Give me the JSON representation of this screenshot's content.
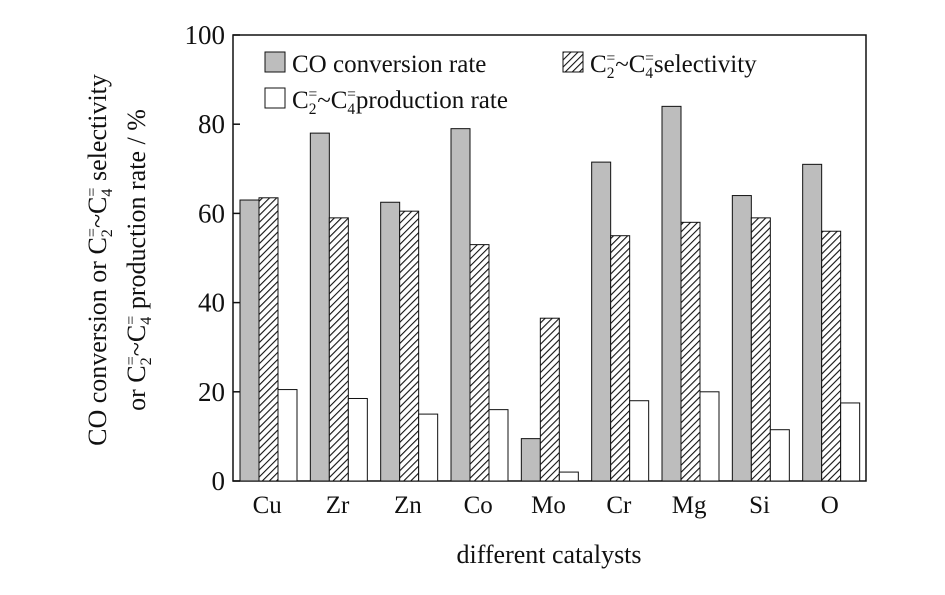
{
  "chart_data": {
    "type": "bar",
    "xlabel": "different catalysts",
    "ylabel_line1_parts": [
      "CO conversion or C",
      "2",
      "=",
      "~C",
      "4",
      "=",
      " selectivity"
    ],
    "ylabel_line2_parts": [
      "or C",
      "2",
      "=",
      "~C",
      "4",
      "=",
      " production rate / %"
    ],
    "ylim": [
      0,
      100
    ],
    "yticks": [
      "0",
      "20",
      "40",
      "60",
      "80",
      "100"
    ],
    "categories": [
      "Cu",
      "Zr",
      "Zn",
      "Co",
      "Mo",
      "Cr",
      "Mg",
      "Si",
      "O"
    ],
    "series": [
      {
        "name": "CO conversion rate",
        "fill": "gray",
        "values": [
          63,
          78,
          62.5,
          79,
          9.5,
          71.5,
          84,
          64,
          71
        ]
      },
      {
        "name_parts": [
          "C",
          "2",
          "=",
          "~C",
          "4",
          "=",
          "selectivity"
        ],
        "fill": "hatched",
        "values": [
          63.5,
          59,
          60.5,
          53,
          36.5,
          55,
          58,
          59,
          56
        ]
      },
      {
        "name_parts": [
          "C",
          "2",
          "=",
          "~C",
          "4",
          "=",
          "production rate"
        ],
        "fill": "white",
        "values": [
          20.5,
          18.5,
          15,
          16,
          2,
          18,
          20,
          11.5,
          17.5
        ]
      }
    ],
    "legend_position": "top-left",
    "grid": false
  },
  "colors": {
    "gray": "#bdbdbd",
    "white": "#ffffff",
    "axis": "#111111"
  }
}
